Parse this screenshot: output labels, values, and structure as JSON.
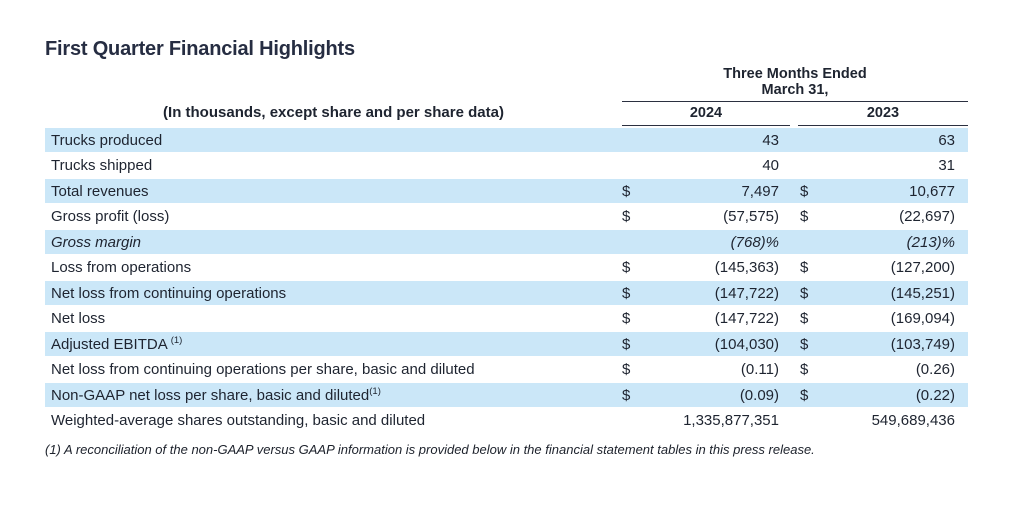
{
  "page": {
    "title": "First Quarter Financial Highlights"
  },
  "table": {
    "units_note": "(In thousands, except share and per share data)",
    "period_line1": "Three Months Ended",
    "period_line2": "March 31,",
    "columns": [
      "2024",
      "2023"
    ],
    "currency_symbol": "$",
    "rows": [
      {
        "label": "Trucks produced",
        "sup": "",
        "sup_gap": false,
        "shaded": true,
        "italic": false,
        "dollar": false,
        "y2024": "43",
        "y2023": "63"
      },
      {
        "label": "Trucks shipped",
        "sup": "",
        "sup_gap": false,
        "shaded": false,
        "italic": false,
        "dollar": false,
        "y2024": "40",
        "y2023": "31"
      },
      {
        "label": "Total revenues",
        "sup": "",
        "sup_gap": false,
        "shaded": true,
        "italic": false,
        "dollar": true,
        "y2024": "7,497",
        "y2023": "10,677"
      },
      {
        "label": "Gross profit (loss)",
        "sup": "",
        "sup_gap": false,
        "shaded": false,
        "italic": false,
        "dollar": true,
        "y2024": "(57,575)",
        "y2023": "(22,697)"
      },
      {
        "label": "Gross margin",
        "sup": "",
        "sup_gap": false,
        "shaded": true,
        "italic": true,
        "dollar": false,
        "y2024": "(768)%",
        "y2023": "(213)%"
      },
      {
        "label": "Loss from operations",
        "sup": "",
        "sup_gap": false,
        "shaded": false,
        "italic": false,
        "dollar": true,
        "y2024": "(145,363)",
        "y2023": "(127,200)"
      },
      {
        "label": "Net loss from continuing operations",
        "sup": "",
        "sup_gap": false,
        "shaded": true,
        "italic": false,
        "dollar": true,
        "y2024": "(147,722)",
        "y2023": "(145,251)"
      },
      {
        "label": "Net loss",
        "sup": "",
        "sup_gap": false,
        "shaded": false,
        "italic": false,
        "dollar": true,
        "y2024": "(147,722)",
        "y2023": "(169,094)"
      },
      {
        "label": "Adjusted EBITDA",
        "sup": "(1)",
        "sup_gap": true,
        "shaded": true,
        "italic": false,
        "dollar": true,
        "y2024": "(104,030)",
        "y2023": "(103,749)"
      },
      {
        "label": "Net loss from continuing operations per share, basic and diluted",
        "sup": "",
        "sup_gap": false,
        "shaded": false,
        "italic": false,
        "dollar": true,
        "y2024": "(0.11)",
        "y2023": "(0.26)"
      },
      {
        "label": "Non-GAAP net loss per share, basic and diluted",
        "sup": "(1)",
        "sup_gap": false,
        "shaded": true,
        "italic": false,
        "dollar": true,
        "y2024": "(0.09)",
        "y2023": "(0.22)"
      },
      {
        "label": "Weighted-average shares outstanding, basic and diluted",
        "sup": "",
        "sup_gap": false,
        "shaded": false,
        "italic": false,
        "dollar": false,
        "y2024": "1,335,877,351",
        "y2023": "549,689,436"
      }
    ],
    "footnote": "(1) A reconciliation of the non-GAAP versus GAAP information is provided below in the financial statement tables in this press release."
  }
}
